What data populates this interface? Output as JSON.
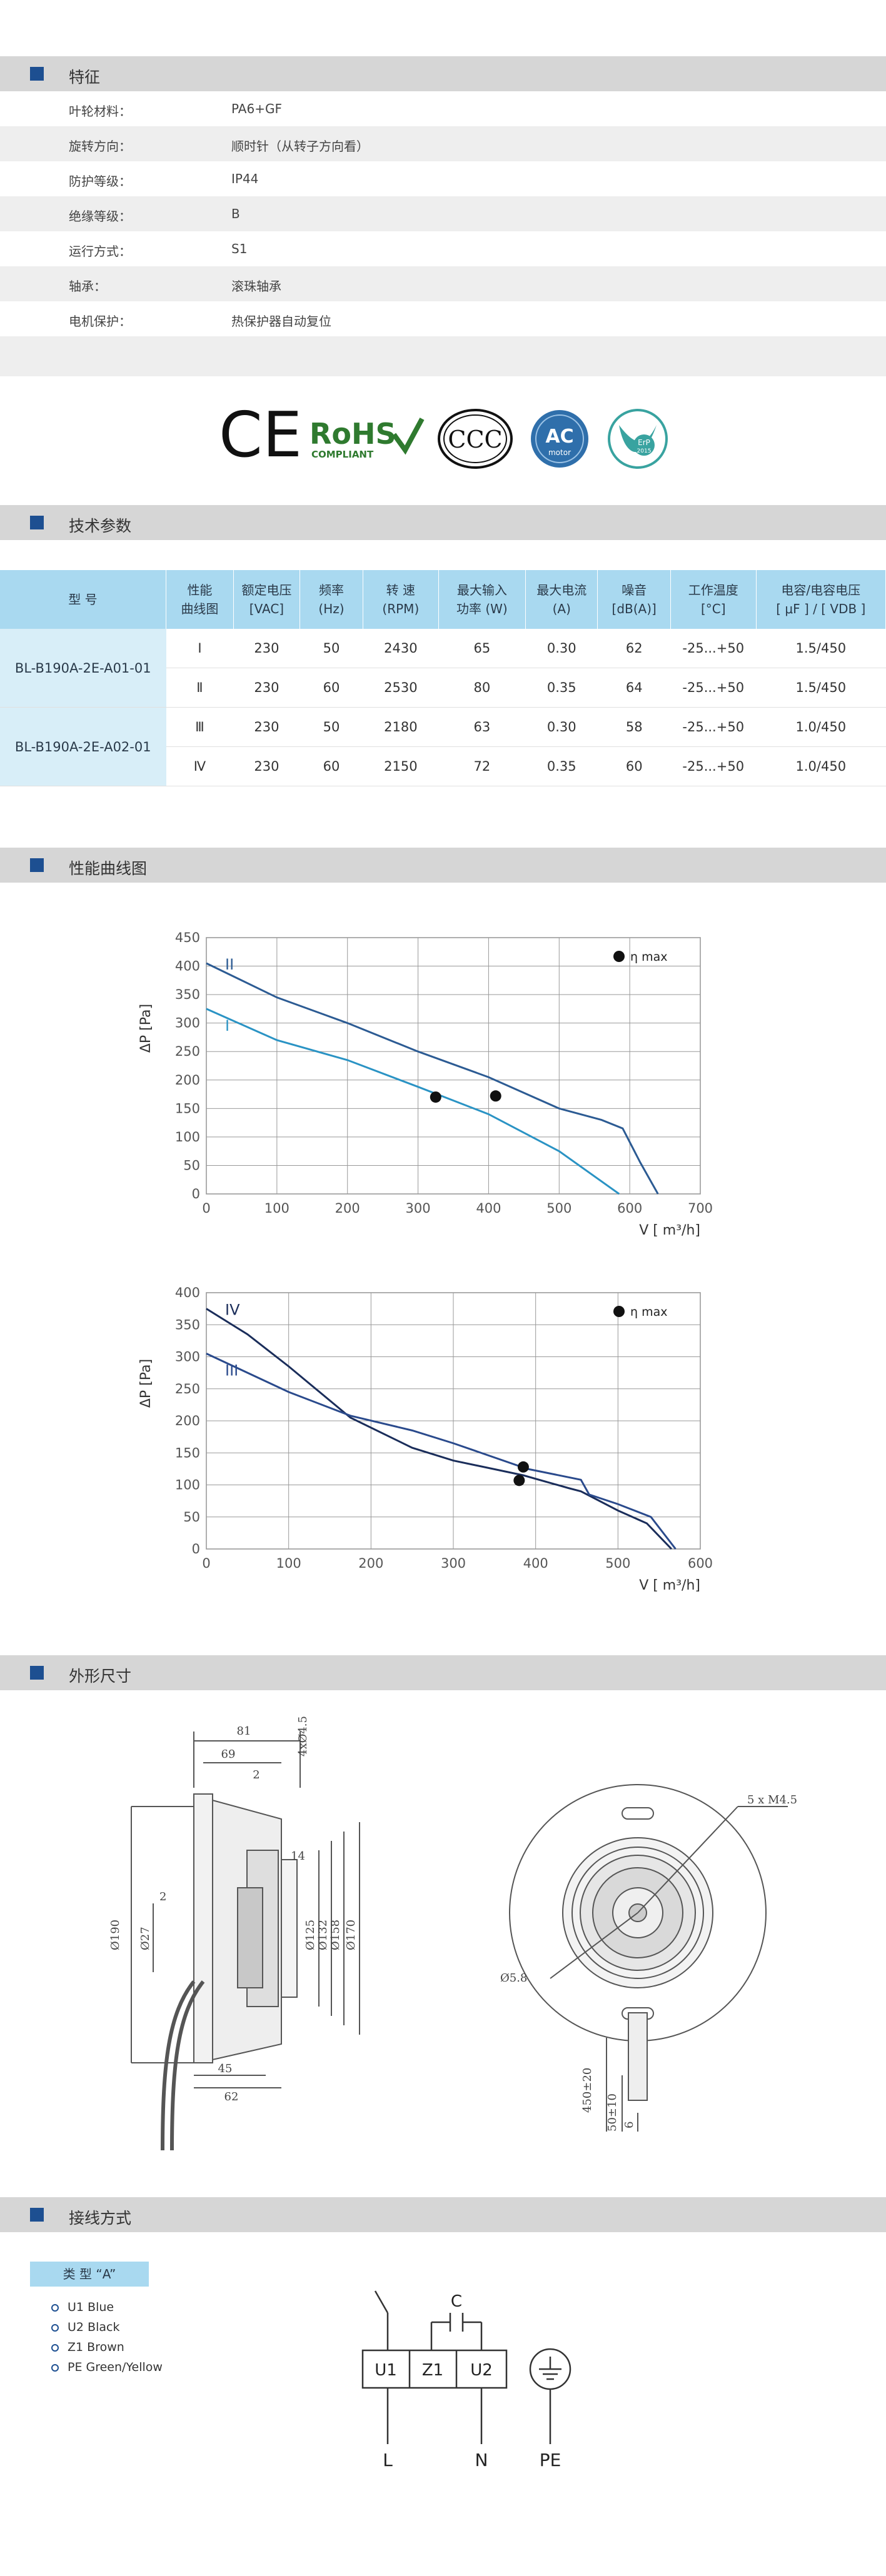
{
  "sections": {
    "features": "特征",
    "tech": "技术参数",
    "curve": "性能曲线图",
    "dimension": "外形尺寸",
    "wiring": "接线方式"
  },
  "features": [
    {
      "key": "叶轮材料：",
      "value": "PA6+GF"
    },
    {
      "key": "旋转方向：",
      "value": "顺时针（从转子方向看）"
    },
    {
      "key": "防护等级：",
      "value": "IP44"
    },
    {
      "key": "绝缘等级：",
      "value": "B"
    },
    {
      "key": "运行方式：",
      "value": "S1"
    },
    {
      "key": "轴承：",
      "value": "滚珠轴承"
    },
    {
      "key": "电机保护：",
      "value": "热保护器自动复位"
    }
  ],
  "certs": {
    "ce": "CE",
    "rohs": "RoHS",
    "rohs_sub": "COMPLIANT",
    "ccc": "CCC",
    "ac": "AC",
    "ac_sub": "motor",
    "erp": "ErP",
    "erp_year": "2015"
  },
  "spec_table": {
    "headers": [
      "型 号",
      "性能\n曲线图",
      "额定电压\n[VAC]",
      "频率\n(Hz)",
      "转 速\n(RPM)",
      "最大输入\n功率 (W)",
      "最大电流\n(A)",
      "噪音\n[dB(A)]",
      "工作温度\n[°C]",
      "电容/电容电压\n[ μF ] / [ VDB ]"
    ],
    "models": [
      "BL-B190A-2E-A01-01",
      "BL-B190A-2E-A02-01"
    ],
    "rows": [
      [
        "Ⅰ",
        "230",
        "50",
        "2430",
        "65",
        "0.30",
        "62",
        "-25...+50",
        "1.5/450"
      ],
      [
        "Ⅱ",
        "230",
        "60",
        "2530",
        "80",
        "0.35",
        "64",
        "-25...+50",
        "1.5/450"
      ],
      [
        "Ⅲ",
        "230",
        "50",
        "2180",
        "63",
        "0.30",
        "58",
        "-25...+50",
        "1.0/450"
      ],
      [
        "Ⅳ",
        "230",
        "60",
        "2150",
        "72",
        "0.35",
        "60",
        "-25...+50",
        "1.0/450"
      ]
    ]
  },
  "chart_data": [
    {
      "type": "line",
      "xlabel": "V [ m³/h]",
      "ylabel": "ΔP [Pa]",
      "xlim": [
        0,
        700
      ],
      "ylim": [
        0,
        450
      ],
      "xticks": [
        0,
        100,
        200,
        300,
        400,
        500,
        600,
        700
      ],
      "yticks": [
        0,
        50,
        100,
        150,
        200,
        250,
        300,
        350,
        400,
        450
      ],
      "legend": "η max",
      "legend_position": "top-right",
      "grid": true,
      "series": [
        {
          "name": "II",
          "color": "#2c5b93",
          "x": [
            0,
            100,
            200,
            300,
            400,
            500,
            560,
            590,
            615,
            640
          ],
          "y": [
            405,
            345,
            300,
            250,
            205,
            150,
            130,
            115,
            55,
            0
          ],
          "eta_max": [
            410,
            172
          ]
        },
        {
          "name": "I",
          "color": "#2a93c4",
          "x": [
            0,
            100,
            200,
            300,
            400,
            500,
            585
          ],
          "y": [
            325,
            270,
            235,
            188,
            140,
            75,
            0
          ],
          "eta_max": [
            325,
            170
          ]
        }
      ]
    },
    {
      "type": "line",
      "xlabel": "V [ m³/h]",
      "ylabel": "ΔP [Pa]",
      "xlim": [
        0,
        600
      ],
      "ylim": [
        0,
        400
      ],
      "xticks": [
        0,
        100,
        200,
        300,
        400,
        500,
        600
      ],
      "yticks": [
        0,
        50,
        100,
        150,
        200,
        250,
        300,
        350,
        400
      ],
      "legend": "η max",
      "legend_position": "top-right",
      "grid": true,
      "series": [
        {
          "name": "IV",
          "color": "#1a2d5a",
          "x": [
            0,
            50,
            100,
            175,
            250,
            300,
            385,
            440,
            455,
            470,
            500,
            535,
            565
          ],
          "y": [
            375,
            335,
            285,
            205,
            158,
            138,
            115,
            95,
            90,
            80,
            60,
            40,
            0
          ],
          "eta_max": [
            380,
            107
          ]
        },
        {
          "name": "III",
          "color": "#2a4a8c",
          "x": [
            0,
            100,
            175,
            250,
            300,
            390,
            455,
            465,
            500,
            540,
            570
          ],
          "y": [
            305,
            245,
            208,
            185,
            165,
            125,
            108,
            85,
            70,
            50,
            0
          ],
          "eta_max": [
            385,
            128
          ]
        }
      ]
    }
  ],
  "dimensions": {
    "d81": "81",
    "d69": "69",
    "d2a": "2",
    "d4x": "4xØ4.5",
    "d14": "14",
    "d2b": "2",
    "d190": "Ø190",
    "d27": "Ø27",
    "d125": "Ø125",
    "d132": "Ø132",
    "d158": "Ø158",
    "d170": "Ø170",
    "d45": "45",
    "d62": "62",
    "d5m": "5 x M4.5",
    "d58": "Ø5.8",
    "d450": "450±20",
    "d50": "50±10",
    "d6": "6"
  },
  "wiring": {
    "type_label": "类 型 “A”",
    "items": [
      "U1  Blue",
      "U2  Black",
      "Z1  Brown",
      "PE  Green/Yellow"
    ],
    "diagram": {
      "c": "C",
      "u1": "U1",
      "z1": "Z1",
      "u2": "U2",
      "l": "L",
      "n": "N",
      "pe": "PE"
    }
  },
  "colors": {
    "accent": "#1d4f91",
    "table_header": "#a9d9f0",
    "section_bg": "#d6d6d6"
  }
}
